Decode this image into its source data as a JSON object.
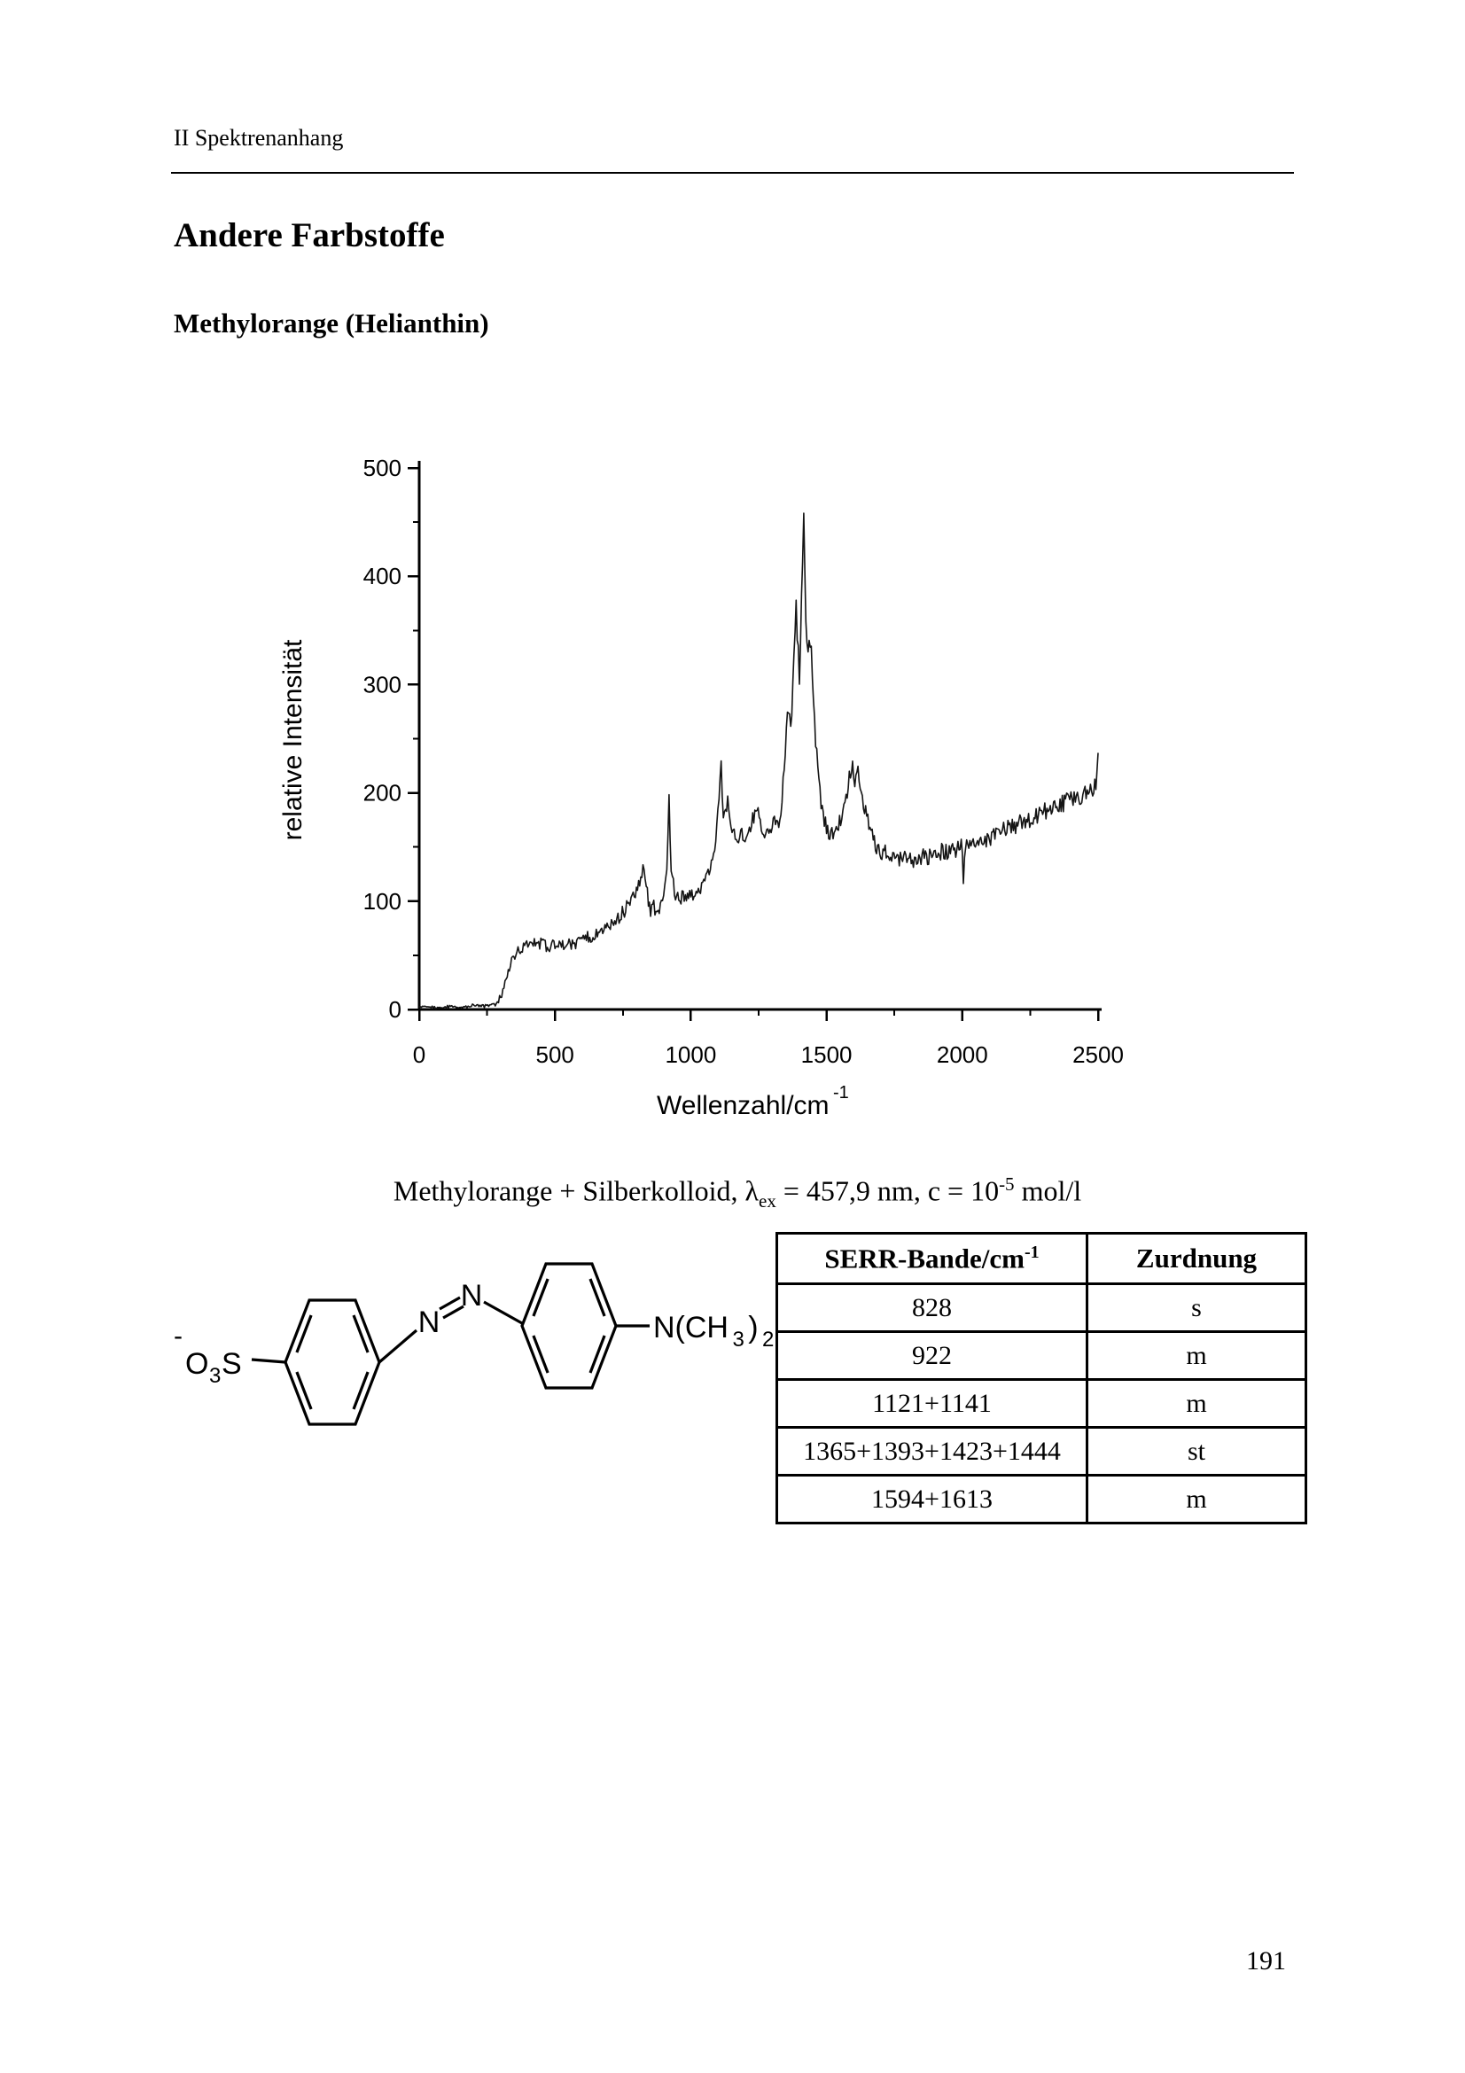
{
  "page": {
    "header": "II Spektrenanhang",
    "section_title": "Andere Farbstoffe",
    "subsection_title": "Methylorange (Helianthin)",
    "page_number": "191"
  },
  "chart_data": {
    "type": "line",
    "title": "",
    "xlabel_main": "Wellenzahl/cm",
    "xlabel_sup": "-1",
    "ylabel": "relative Intensität",
    "xlim": [
      0,
      2500
    ],
    "ylim": [
      0,
      500
    ],
    "x_major_ticks": [
      0,
      500,
      1000,
      1500,
      2000,
      2500
    ],
    "x_minor_ticks": [
      250,
      750,
      1250,
      1750,
      2250
    ],
    "y_major_ticks": [
      0,
      100,
      200,
      300,
      400,
      500
    ],
    "y_minor_ticks": [
      50,
      150,
      250,
      350,
      450
    ],
    "grid": false,
    "legend": null,
    "line_color": "#141414",
    "anchor_points": [
      [
        0,
        2
      ],
      [
        40,
        3
      ],
      [
        80,
        2
      ],
      [
        120,
        3
      ],
      [
        160,
        2
      ],
      [
        200,
        4
      ],
      [
        240,
        3
      ],
      [
        280,
        4
      ],
      [
        296,
        8
      ],
      [
        308,
        16
      ],
      [
        320,
        28
      ],
      [
        332,
        38
      ],
      [
        344,
        46
      ],
      [
        356,
        52
      ],
      [
        372,
        56
      ],
      [
        388,
        59
      ],
      [
        400,
        62
      ],
      [
        412,
        66
      ],
      [
        424,
        62
      ],
      [
        436,
        58
      ],
      [
        448,
        62
      ],
      [
        460,
        60
      ],
      [
        472,
        57
      ],
      [
        484,
        59
      ],
      [
        500,
        61
      ],
      [
        516,
        63
      ],
      [
        532,
        60
      ],
      [
        548,
        62
      ],
      [
        564,
        60
      ],
      [
        580,
        61
      ],
      [
        596,
        65
      ],
      [
        612,
        68
      ],
      [
        628,
        66
      ],
      [
        644,
        69
      ],
      [
        660,
        71
      ],
      [
        676,
        73
      ],
      [
        692,
        76
      ],
      [
        708,
        79
      ],
      [
        724,
        82
      ],
      [
        740,
        87
      ],
      [
        756,
        92
      ],
      [
        772,
        99
      ],
      [
        788,
        106
      ],
      [
        804,
        114
      ],
      [
        816,
        123
      ],
      [
        828,
        130
      ],
      [
        836,
        112
      ],
      [
        844,
        102
      ],
      [
        852,
        92
      ],
      [
        864,
        96
      ],
      [
        872,
        90
      ],
      [
        880,
        88
      ],
      [
        892,
        98
      ],
      [
        904,
        108
      ],
      [
        912,
        135
      ],
      [
        920,
        198
      ],
      [
        928,
        128
      ],
      [
        940,
        108
      ],
      [
        952,
        102
      ],
      [
        964,
        104
      ],
      [
        976,
        106
      ],
      [
        988,
        108
      ],
      [
        1000,
        103
      ],
      [
        1012,
        106
      ],
      [
        1024,
        110
      ],
      [
        1036,
        113
      ],
      [
        1048,
        117
      ],
      [
        1060,
        122
      ],
      [
        1072,
        128
      ],
      [
        1084,
        138
      ],
      [
        1096,
        165
      ],
      [
        1104,
        196
      ],
      [
        1112,
        230
      ],
      [
        1116,
        190
      ],
      [
        1124,
        178
      ],
      [
        1132,
        182
      ],
      [
        1136,
        196
      ],
      [
        1144,
        172
      ],
      [
        1152,
        163
      ],
      [
        1164,
        158
      ],
      [
        1176,
        160
      ],
      [
        1188,
        162
      ],
      [
        1200,
        160
      ],
      [
        1212,
        166
      ],
      [
        1224,
        172
      ],
      [
        1236,
        180
      ],
      [
        1248,
        184
      ],
      [
        1256,
        172
      ],
      [
        1268,
        163
      ],
      [
        1280,
        164
      ],
      [
        1292,
        166
      ],
      [
        1304,
        168
      ],
      [
        1316,
        170
      ],
      [
        1328,
        180
      ],
      [
        1344,
        215
      ],
      [
        1352,
        260
      ],
      [
        1360,
        282
      ],
      [
        1368,
        258
      ],
      [
        1376,
        300
      ],
      [
        1388,
        380
      ],
      [
        1392,
        345
      ],
      [
        1400,
        310
      ],
      [
        1404,
        340
      ],
      [
        1408,
        390
      ],
      [
        1416,
        452
      ],
      [
        1420,
        400
      ],
      [
        1428,
        330
      ],
      [
        1436,
        333
      ],
      [
        1444,
        328
      ],
      [
        1452,
        290
      ],
      [
        1460,
        252
      ],
      [
        1468,
        225
      ],
      [
        1480,
        188
      ],
      [
        1492,
        172
      ],
      [
        1504,
        166
      ],
      [
        1516,
        162
      ],
      [
        1528,
        165
      ],
      [
        1540,
        170
      ],
      [
        1552,
        174
      ],
      [
        1564,
        182
      ],
      [
        1576,
        200
      ],
      [
        1588,
        220
      ],
      [
        1596,
        226
      ],
      [
        1604,
        206
      ],
      [
        1612,
        226
      ],
      [
        1620,
        212
      ],
      [
        1632,
        196
      ],
      [
        1644,
        182
      ],
      [
        1656,
        168
      ],
      [
        1672,
        156
      ],
      [
        1688,
        150
      ],
      [
        1704,
        146
      ],
      [
        1724,
        143
      ],
      [
        1744,
        141
      ],
      [
        1768,
        139
      ],
      [
        1792,
        139
      ],
      [
        1816,
        138
      ],
      [
        1840,
        139
      ],
      [
        1864,
        141
      ],
      [
        1888,
        143
      ],
      [
        1912,
        145
      ],
      [
        1936,
        146
      ],
      [
        1960,
        147
      ],
      [
        1984,
        149
      ],
      [
        2000,
        150
      ],
      [
        2004,
        118
      ],
      [
        2008,
        148
      ],
      [
        2024,
        151
      ],
      [
        2048,
        153
      ],
      [
        2072,
        155
      ],
      [
        2096,
        158
      ],
      [
        2120,
        161
      ],
      [
        2144,
        164
      ],
      [
        2168,
        167
      ],
      [
        2192,
        170
      ],
      [
        2216,
        172
      ],
      [
        2240,
        175
      ],
      [
        2264,
        178
      ],
      [
        2288,
        181
      ],
      [
        2312,
        184
      ],
      [
        2336,
        187
      ],
      [
        2360,
        189
      ],
      [
        2384,
        192
      ],
      [
        2408,
        194
      ],
      [
        2432,
        197
      ],
      [
        2456,
        199
      ],
      [
        2480,
        202
      ],
      [
        2492,
        206
      ],
      [
        2496,
        214
      ],
      [
        2500,
        230
      ]
    ],
    "noise_regions": [
      [
        0,
        292,
        1.5
      ],
      [
        292,
        700,
        5
      ],
      [
        700,
        1296,
        7
      ],
      [
        1296,
        1472,
        10
      ],
      [
        1472,
        2500,
        8
      ]
    ]
  },
  "caption": {
    "prefix": "Methylorange + Silberkolloid, ",
    "lambda": "λ",
    "lambda_sub": "ex",
    "mid": " = 457,9 nm, c = 10",
    "exp": "-5",
    "suffix": " mol/l"
  },
  "structure": {
    "minus": "-",
    "o": "O",
    "sub3": "3",
    "s": "S",
    "n1": "N",
    "n2": "N",
    "amine_main": "N(CH",
    "amine_sub3": "3",
    "amine_close": ")",
    "amine_sub2": "2"
  },
  "table": {
    "header": {
      "col1_main": "SERR-Bande/cm",
      "col1_sup": "-1",
      "col2": "Zurdnung"
    },
    "rows": [
      [
        "828",
        "s"
      ],
      [
        "922",
        "m"
      ],
      [
        "1121+1141",
        "m"
      ],
      [
        "1365+1393+1423+1444",
        "st"
      ],
      [
        "1594+1613",
        "m"
      ]
    ]
  }
}
